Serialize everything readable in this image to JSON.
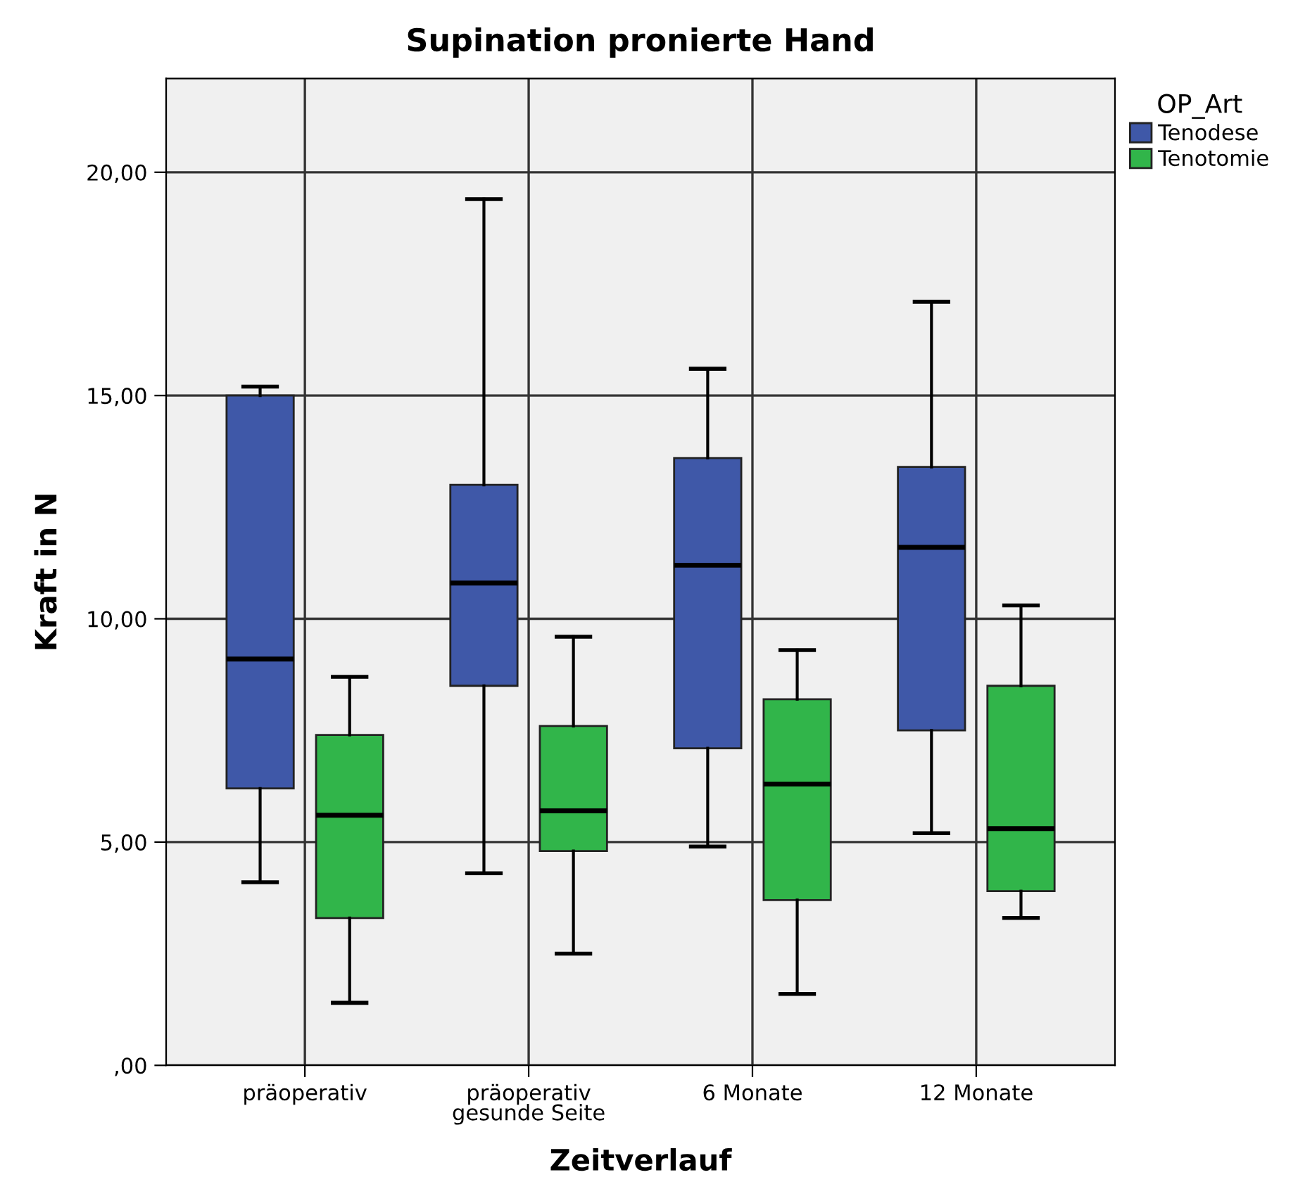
{
  "chart_data": {
    "type": "box",
    "title": "Supination pronierte Hand",
    "xlabel": "Zeitverlauf",
    "ylabel": "Kraft in N",
    "legend_title": "OP_Art",
    "legend": "top right",
    "grid": true,
    "categories": [
      "präoperativ",
      "präoperativ\ngesunde Seite",
      "6 Monate",
      "12 Monate"
    ],
    "ylim": [
      0,
      22.1
    ],
    "yticks": [
      {
        "value": 0,
        "label": ",00"
      },
      {
        "value": 5,
        "label": "5,00"
      },
      {
        "value": 10,
        "label": "10,00"
      },
      {
        "value": 15,
        "label": "15,00"
      },
      {
        "value": 20,
        "label": "20,00"
      }
    ],
    "series": [
      {
        "name": "Tenodese",
        "color": "#3f58a8",
        "boxes": [
          {
            "low": 4.1,
            "q1": 6.2,
            "median": 9.1,
            "q3": 15.0,
            "high": 15.2
          },
          {
            "low": 4.3,
            "q1": 8.5,
            "median": 10.8,
            "q3": 13.0,
            "high": 19.4
          },
          {
            "low": 4.9,
            "q1": 7.1,
            "median": 11.2,
            "q3": 13.6,
            "high": 15.6
          },
          {
            "low": 5.2,
            "q1": 7.5,
            "median": 11.6,
            "q3": 13.4,
            "high": 17.1
          }
        ]
      },
      {
        "name": "Tenotomie",
        "color": "#31b54a",
        "boxes": [
          {
            "low": 1.4,
            "q1": 3.3,
            "median": 5.6,
            "q3": 7.4,
            "high": 8.7
          },
          {
            "low": 2.5,
            "q1": 4.8,
            "median": 5.7,
            "q3": 7.6,
            "high": 9.6
          },
          {
            "low": 1.6,
            "q1": 3.7,
            "median": 6.3,
            "q3": 8.2,
            "high": 9.3
          },
          {
            "low": 3.3,
            "q1": 3.9,
            "median": 5.3,
            "q3": 8.5,
            "high": 10.3
          }
        ]
      }
    ]
  }
}
